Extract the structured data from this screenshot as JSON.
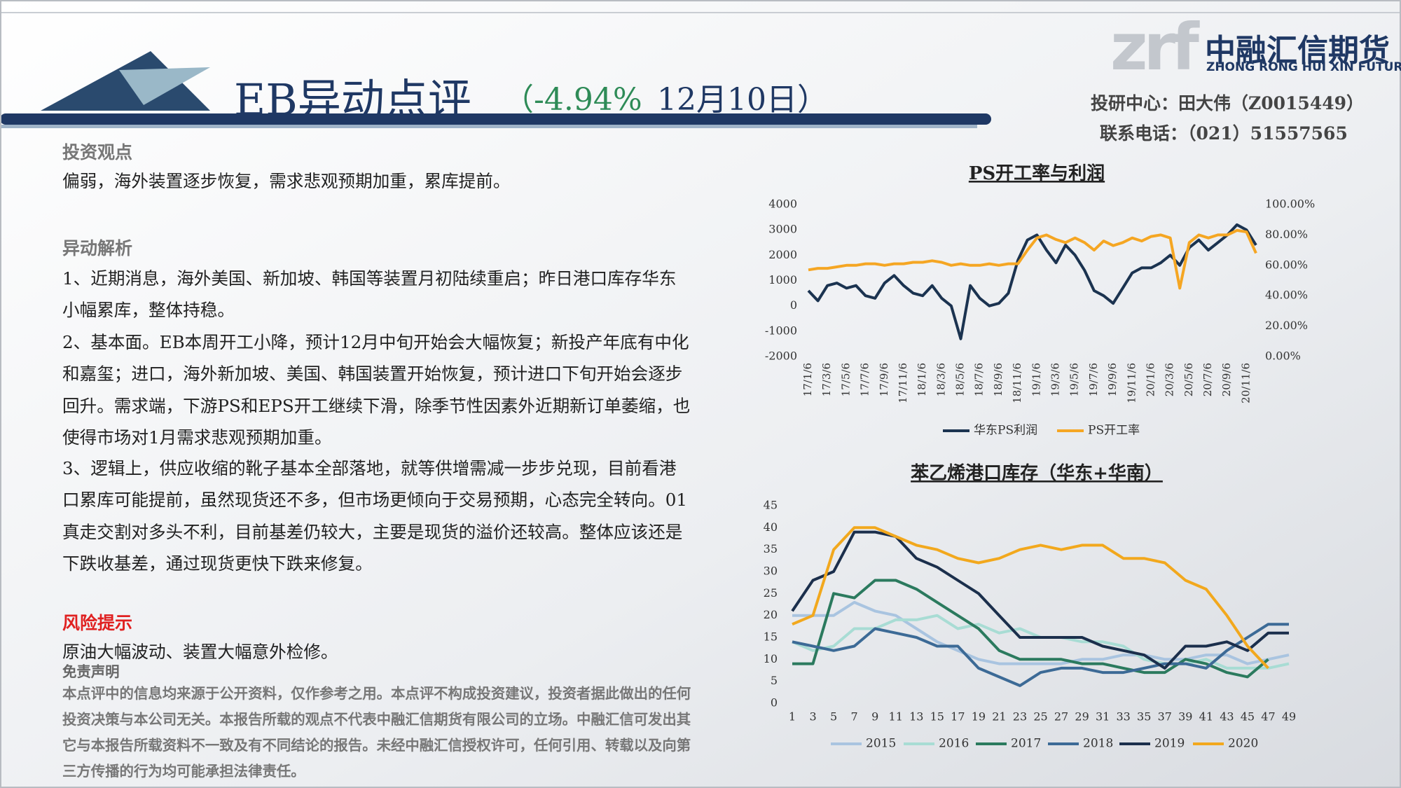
{
  "header": {
    "title": "EB异动点评",
    "change": "（-4.94%",
    "date": "12月10日）",
    "logo_mark": "zrf",
    "company": "中融汇信期货",
    "company_en": "ZHONG RONG HUI XIN FUTURES",
    "analyst": "投研中心：田大伟（Z0015449）",
    "phone": "联系电话：（021）51557565"
  },
  "sections": {
    "view_heading": "投资观点",
    "view": "偏弱，海外装置逐步恢复，需求悲观预期加重，累库提前。",
    "analysis_heading": "异动解析",
    "analysis": [
      "1、近期消息，海外美国、新加坡、韩国等装置月初陆续重启；昨日港口库存华东小幅累库，整体持稳。",
      "2、基本面。EB本周开工小降，预计12月中旬开始会大幅恢复；新投产年底有中化和嘉玺；进口，海外新加坡、美国、韩国装置开始恢复，预计进口下旬开始会逐步回升。需求端，下游PS和EPS开工继续下滑，除季节性因素外近期新订单萎缩，也使得市场对1月需求悲观预期加重。",
      "3、逻辑上，供应收缩的靴子基本全部落地，就等供增需减一步步兑现，目前看港口累库可能提前，虽然现货还不多，但市场更倾向于交易预期，心态完全转向。01真走交割对多头不利，目前基差仍较大，主要是现货的溢价还较高。整体应该还是下跌收基差，通过现货更快下跌来修复。"
    ],
    "risk_heading": "风险提示",
    "risk": "原油大幅波动、装置大幅意外检修。",
    "disclaimer_heading": "免责声明",
    "disclaimer": "本点评中的信息均来源于公开资料，仅作参考之用。本点评不构成投资建议，投资者据此做出的任何投资决策与本公司无关。本报告所载的观点不代表中融汇信期货有限公司的立场。中融汇信可发出其它与本报告所载资料不一致及有不同结论的报告。未经中融汇信授权许可，任何引用、转载以及向第三方传播的行为均可能承担法律责任。"
  },
  "chart_data": [
    {
      "type": "line",
      "title": "PS开工率与利润",
      "categories": [
        "17/1/6",
        null,
        "17/3/6",
        null,
        "17/5/6",
        null,
        "17/7/6",
        null,
        "17/9/6",
        null,
        "17/11/6",
        null,
        "18/1/6",
        null,
        "18/3/6",
        null,
        "18/5/6",
        null,
        "18/7/6",
        null,
        "18/9/6",
        null,
        "18/11/6",
        null,
        "19/1/6",
        null,
        "19/3/6",
        null,
        "19/5/6",
        null,
        "19/7/6",
        null,
        "19/9/6",
        null,
        "19/11/6",
        null,
        "20/1/6",
        null,
        "20/3/6",
        null,
        "20/5/6",
        null,
        "20/7/6",
        null,
        "20/9/6",
        null,
        "20/11/6",
        null
      ],
      "series": [
        {
          "name": "华东PS利润",
          "color": "#1b3350",
          "values": [
            600,
            200,
            800,
            900,
            700,
            800,
            400,
            300,
            900,
            1200,
            800,
            500,
            400,
            800,
            300,
            0,
            -1300,
            800,
            300,
            0,
            100,
            500,
            1800,
            2600,
            2800,
            2200,
            1700,
            2400,
            2000,
            1400,
            600,
            400,
            100,
            700,
            1300,
            1500,
            1500,
            1700,
            2000,
            1600,
            2300,
            2600,
            2200,
            2500,
            2800,
            3200,
            3000,
            2400
          ]
        },
        {
          "name": "PS开工率",
          "color": "#f5a623",
          "axis": "y2",
          "values": [
            57,
            58,
            58,
            59,
            60,
            60,
            61,
            61,
            60,
            61,
            61,
            62,
            62,
            63,
            62,
            60,
            61,
            60,
            60,
            61,
            60,
            61,
            61,
            70,
            78,
            80,
            77,
            75,
            78,
            75,
            70,
            76,
            73,
            75,
            78,
            76,
            79,
            80,
            78,
            45,
            75,
            80,
            78,
            80,
            80,
            83,
            82,
            68
          ]
        }
      ],
      "ylim": [
        -2000,
        4000
      ],
      "yticks": [
        -2000,
        -1000,
        0,
        1000,
        2000,
        3000,
        4000
      ],
      "y2lim": [
        0,
        100
      ],
      "y2ticks": [
        {
          "value": 0,
          "label": "0.00%"
        },
        {
          "value": 20,
          "label": "20.00%"
        },
        {
          "value": 40,
          "label": "40.00%"
        },
        {
          "value": 60,
          "label": "60.00%"
        },
        {
          "value": 80,
          "label": "80.00%"
        },
        {
          "value": 100,
          "label": "100.00%"
        }
      ],
      "grid": false,
      "legend": "bottom"
    },
    {
      "type": "line",
      "title": "苯乙烯港口库存（华东+华南）",
      "categories": [
        1,
        3,
        5,
        7,
        9,
        11,
        13,
        15,
        17,
        19,
        21,
        23,
        25,
        27,
        29,
        31,
        33,
        35,
        37,
        39,
        41,
        43,
        45,
        47,
        49
      ],
      "series": [
        {
          "name": "2015",
          "color": "#a9c4e0",
          "values": [
            20,
            20,
            20,
            23,
            21,
            20,
            17,
            14,
            12,
            10,
            9,
            9,
            9,
            9,
            10,
            10,
            11,
            11,
            10,
            10,
            11,
            11,
            9,
            10,
            11
          ]
        },
        {
          "name": "2016",
          "color": "#a8dcd4",
          "values": [
            14,
            12,
            13,
            17,
            17,
            19,
            19,
            20,
            17,
            18,
            16,
            17,
            15,
            15,
            14,
            14,
            13,
            10,
            9,
            9,
            10,
            8,
            8,
            8,
            9
          ]
        },
        {
          "name": "2017",
          "color": "#2b7a5e",
          "values": [
            9,
            9,
            25,
            24,
            28,
            28,
            26,
            23,
            20,
            17,
            12,
            10,
            10,
            10,
            9,
            9,
            8,
            7,
            7,
            10,
            9,
            7,
            6,
            10,
            null
          ]
        },
        {
          "name": "2018",
          "color": "#3c6a96",
          "values": [
            14,
            13,
            12,
            13,
            17,
            16,
            15,
            13,
            13,
            8,
            6,
            4,
            7,
            8,
            8,
            7,
            7,
            8,
            9,
            9,
            8,
            12,
            15,
            18,
            18
          ]
        },
        {
          "name": "2019",
          "color": "#1b2f4c",
          "values": [
            21,
            28,
            30,
            39,
            39,
            38,
            33,
            31,
            28,
            25,
            20,
            15,
            15,
            15,
            15,
            13,
            12,
            11,
            8,
            13,
            13,
            14,
            12,
            16,
            16
          ]
        },
        {
          "name": "2020",
          "color": "#f2a81d",
          "values": [
            18,
            20,
            35,
            40,
            40,
            38,
            36,
            35,
            33,
            32,
            33,
            35,
            36,
            35,
            36,
            36,
            33,
            33,
            32,
            28,
            26,
            20,
            13,
            8,
            null
          ]
        }
      ],
      "ylim": [
        0,
        45
      ],
      "yticks": [
        0,
        5,
        10,
        15,
        20,
        25,
        30,
        35,
        40,
        45
      ],
      "grid": false,
      "legend": "bottom"
    }
  ]
}
